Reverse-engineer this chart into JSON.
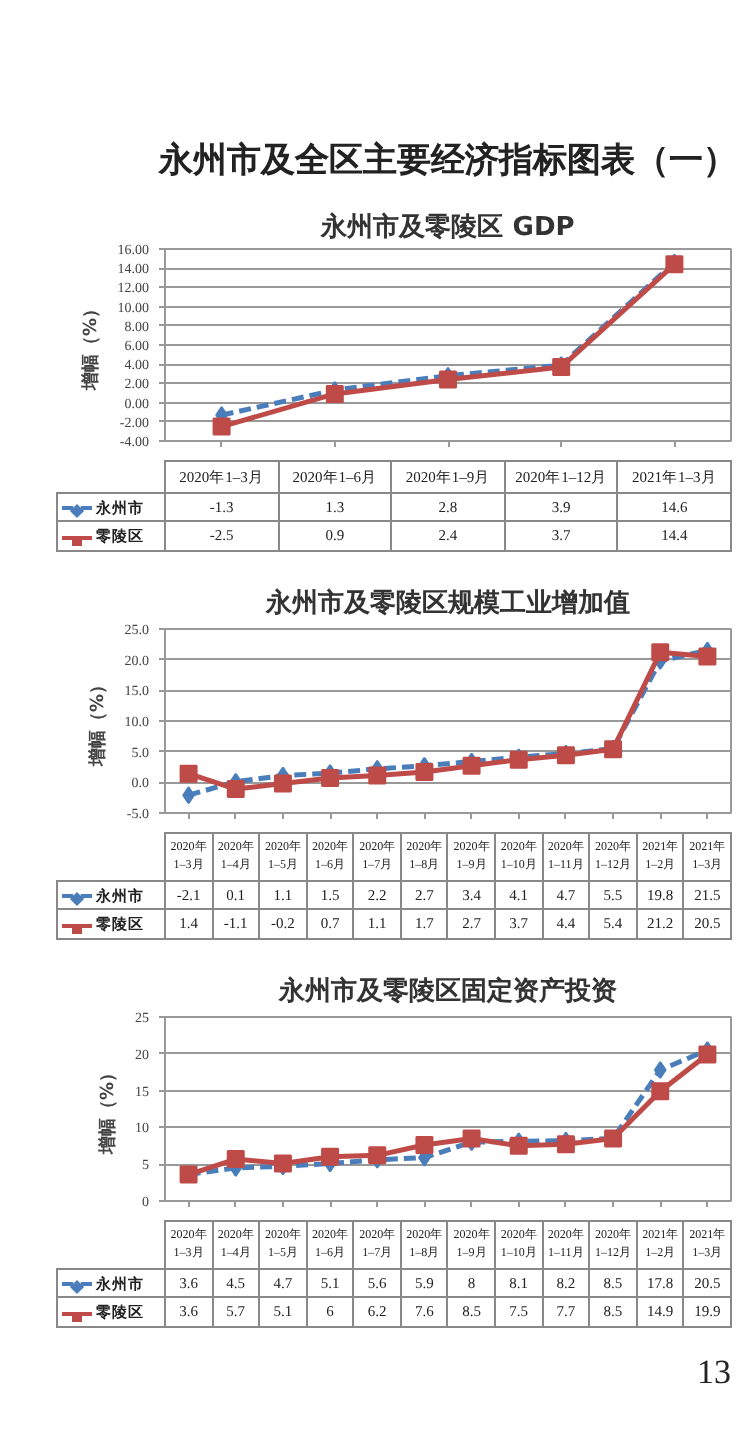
{
  "chart_data": [
    {
      "type": "line",
      "title": "永州市及零陵区 GDP",
      "ylabel": "增幅（%）",
      "annotations": [
        "永州市及全区主要经济指标图表（一）"
      ],
      "categories": [
        "2020年1–3月",
        "2020年1–6月",
        "2020年1–9月",
        "2020年1–12月",
        "2021年1–3月"
      ],
      "series": [
        {
          "name": "永州市",
          "color": "#4a7ebb",
          "marker": "diamond",
          "line_style": "dashed",
          "values": [
            -1.3,
            1.3,
            2.8,
            3.9,
            14.6
          ]
        },
        {
          "name": "零陵区",
          "color": "#be4b48",
          "marker": "square",
          "line_style": "solid",
          "values": [
            -2.5,
            0.9,
            2.4,
            3.7,
            14.4
          ]
        }
      ],
      "ylim": [
        -4,
        16
      ],
      "yticks": [
        {
          "value": -4,
          "label": "-4.00"
        },
        {
          "value": -2,
          "label": "-2.00"
        },
        {
          "value": 0,
          "label": "0.00"
        },
        {
          "value": 2,
          "label": "2.00"
        },
        {
          "value": 4,
          "label": "4.00"
        },
        {
          "value": 6,
          "label": "6.00"
        },
        {
          "value": 8,
          "label": "8.00"
        },
        {
          "value": 10,
          "label": "10.00"
        },
        {
          "value": 12,
          "label": "12.00"
        },
        {
          "value": 14,
          "label": "14.00"
        },
        {
          "value": 16,
          "label": "16.00"
        }
      ],
      "grid": "y",
      "legend": "bottom",
      "data_labels": true
    },
    {
      "type": "line",
      "title": "永州市及零陵区规模工业增加值",
      "ylabel": "增幅（%）",
      "categories": [
        "2020年1–3月",
        "2020年1–4月",
        "2020年1–5月",
        "2020年1–6月",
        "2020年1–7月",
        "2020年1–8月",
        "2020年1–9月",
        "2020年1–10月",
        "2020年1–11月",
        "2020年1–12月",
        "2021年1–2月",
        "2021年1–3月"
      ],
      "series": [
        {
          "name": "永州市",
          "color": "#4a7ebb",
          "marker": "diamond",
          "line_style": "dashed",
          "values": [
            -2.1,
            0.1,
            1.1,
            1.5,
            2.2,
            2.7,
            3.4,
            4.1,
            4.7,
            5.5,
            19.8,
            21.5
          ]
        },
        {
          "name": "零陵区",
          "color": "#be4b48",
          "marker": "square",
          "line_style": "solid",
          "values": [
            1.4,
            -1.1,
            -0.2,
            0.7,
            1.1,
            1.7,
            2.7,
            3.7,
            4.4,
            5.4,
            21.2,
            20.5
          ]
        }
      ],
      "ylim": [
        -5,
        25
      ],
      "yticks": [
        {
          "value": -5,
          "label": "-5.0"
        },
        {
          "value": 0,
          "label": "0.0"
        },
        {
          "value": 5,
          "label": "5.0"
        },
        {
          "value": 10,
          "label": "10.0"
        },
        {
          "value": 15,
          "label": "15.0"
        },
        {
          "value": 20,
          "label": "20.0"
        },
        {
          "value": 25,
          "label": "25.0"
        }
      ],
      "grid": "y",
      "legend": "bottom",
      "data_labels": true
    },
    {
      "type": "line",
      "title": "永州市及零陵区固定资产投资",
      "ylabel": "增幅（%）",
      "annotations": [
        "13"
      ],
      "categories": [
        "2020年1–3月",
        "2020年1–4月",
        "2020年1–5月",
        "2020年1–6月",
        "2020年1–7月",
        "2020年1–8月",
        "2020年1–9月",
        "2020年1–10月",
        "2020年1–11月",
        "2020年1–12月",
        "2021年1–2月",
        "2021年1–3月"
      ],
      "series": [
        {
          "name": "永州市",
          "color": "#4a7ebb",
          "marker": "diamond",
          "line_style": "dashed",
          "values": [
            3.6,
            4.5,
            4.7,
            5.1,
            5.6,
            5.9,
            8,
            8.1,
            8.2,
            8.5,
            17.8,
            20.5
          ]
        },
        {
          "name": "零陵区",
          "color": "#be4b48",
          "marker": "square",
          "line_style": "solid",
          "values": [
            3.6,
            5.7,
            5.1,
            6,
            6.2,
            7.6,
            8.5,
            7.5,
            7.7,
            8.5,
            14.9,
            19.9
          ]
        }
      ],
      "ylim": [
        0,
        25
      ],
      "yticks": [
        0,
        5,
        10,
        15,
        20,
        25
      ],
      "grid": "y",
      "legend": "bottom",
      "data_labels": true
    }
  ]
}
